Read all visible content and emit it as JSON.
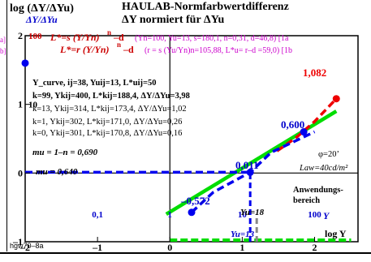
{
  "header": {
    "y_title": "log (ΔY/ΔYu)",
    "title": "HAULAB-Normfarbwertdifferenz",
    "subtitle": "ΔY normiert für ΔYu",
    "y_sub": "ΔY/ΔYu"
  },
  "formulas": {
    "f1_lhs": "L*=s (Y/Yn)",
    "f1_exp": "n",
    "f1_tail": "–d",
    "f1_params": "(Yn=100, Yu=13, s=180,1, n=0,31, d=46,8) [1a",
    "f2_lhs": "L*=r (Y/Yn)",
    "f2_exp": "n",
    "f2_tail": "–d",
    "f2_params": "(r = s (Yu/Yn)n=105,88, L*u= r–d =59,0)  [1b",
    "left_cut_1": "a]",
    "left_cut_2": "b]"
  },
  "info_lines": [
    "Y_curve, ij=38, Yuij=13, L*uij=50",
    "k=99, Ykij=400, L*kij=188,4, ΔY/ΔYu=3,98",
    "k=13, Ykij=314, L*kij=173,4, ΔY/ΔYu=1,02",
    "k=1, Ykij=302, L*kij=171,0, ΔY/ΔYu=0,26",
    "k=0, Ykij=301, L*kij=170,8, ΔY/ΔYu=0,16"
  ],
  "slopes": {
    "mu_eq": "mu = 1–n = 0,690",
    "mu_val": "mu = 0,640"
  },
  "side_note": {
    "phi": "φ=20’",
    "law": "Law=40cd/m²",
    "range1": "Anwendungs-",
    "range2": "bereich"
  },
  "annotations": {
    "p_1082": "1,082",
    "p_0600": "0,600",
    "p_0011": "0,011",
    "p_0572": "–0,572",
    "yu18": "Yu=18",
    "yu13": "Yu=13",
    "y_letter": "Y",
    "x_title": "log Y"
  },
  "footer": {
    "code": "hgw70–8a"
  },
  "chart_data": {
    "type": "line",
    "xlabel": "log Y",
    "ylabel": "log (ΔY/ΔYu)",
    "xlim": [
      -2,
      2.6
    ],
    "ylim": [
      -1,
      2
    ],
    "x_ticks": [
      -2,
      -1,
      0,
      1,
      2
    ],
    "x_tick_labels": [
      "–2",
      "–1",
      "0",
      "1",
      "2"
    ],
    "y_ticks": [
      -1,
      0,
      1,
      2
    ],
    "y_tick_labels": [
      "–1",
      "0",
      "1",
      "2"
    ],
    "linear_ticks": [
      {
        "x": 0,
        "label": "1"
      },
      {
        "x": 1,
        "label": "10"
      },
      {
        "x": 2,
        "label": "100"
      },
      {
        "x": -1,
        "label": "0,1"
      }
    ],
    "y_linear_tick": {
      "y": 2,
      "label": "100"
    },
    "y_tick_extra": {
      "y": 1,
      "label": "10"
    },
    "series": [
      {
        "name": "mu = 0,640",
        "color": "#00dd00",
        "style": "solid",
        "points": [
          [
            -0.05,
            -0.6
          ],
          [
            2.3,
            0.9
          ]
        ]
      },
      {
        "name": "Y_curve",
        "color": "#ee0000",
        "style": "dashed",
        "points": [
          [
            1.48,
            0.32
          ],
          [
            1.75,
            0.52
          ],
          [
            2.0,
            0.75
          ],
          [
            2.3,
            1.082
          ]
        ]
      },
      {
        "name": "reference",
        "color": "#0000ee",
        "style": "dashed",
        "points": [
          [
            0.3,
            -0.572
          ],
          [
            0.6,
            -0.28
          ],
          [
            1.11,
            0.011
          ],
          [
            1.4,
            0.3
          ],
          [
            2.0,
            0.6
          ]
        ]
      },
      {
        "name": "level",
        "color": "#0000ee",
        "style": "dashed",
        "points": [
          [
            -2,
            0.011
          ],
          [
            1.11,
            0.011
          ]
        ]
      }
    ],
    "points": [
      {
        "x": 2.3,
        "y": 1.082,
        "color": "#ee0000",
        "label": "1,082"
      },
      {
        "x": 1.85,
        "y": 0.6,
        "color": "#0000ee",
        "label": "0,600"
      },
      {
        "x": 1.11,
        "y": 0.011,
        "color": "#0000ee",
        "label": "0,011"
      },
      {
        "x": 0.3,
        "y": -0.572,
        "color": "#0000ee",
        "label": "–0,572"
      },
      {
        "x": -2,
        "y": 1.6,
        "color": "#0000ee",
        "label": ""
      }
    ],
    "vertical_lines": [
      {
        "x": 1.11,
        "from": -1,
        "to": 0.011,
        "color": "#0000ee",
        "style": "dashed"
      },
      {
        "x": 1.2,
        "from": -1,
        "to": -0.6,
        "color": "#888888",
        "style": "dashed"
      }
    ],
    "range_segment": {
      "from": 0,
      "to": 2,
      "y": -1,
      "color": "#00dd00"
    }
  }
}
